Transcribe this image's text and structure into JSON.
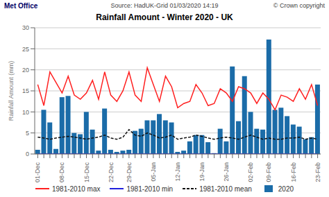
{
  "chart_data": {
    "type": "bar",
    "title": "Rainfall Amount - Winter 2020 - UK",
    "subtitle": "Source: HadUK-Grid 01/03/2020 14:19",
    "annotations": [
      "Met Office",
      "© Crown copyright"
    ],
    "ylabel": "Rainfall Amount (mm)",
    "categories": [
      "01-Dec",
      null,
      null,
      null,
      "08-Dec",
      null,
      null,
      null,
      "15-Dec",
      null,
      null,
      null,
      "22-Dec",
      null,
      null,
      "29-Dec",
      null,
      null,
      null,
      "05-Jan",
      null,
      null,
      null,
      "12-Jan",
      null,
      null,
      null,
      "19-Jan",
      null,
      null,
      null,
      "26-Jan",
      null,
      null,
      null,
      "02-Feb",
      null,
      null,
      "09-Feb",
      null,
      null,
      null,
      "16-Feb",
      null,
      null,
      null,
      "23-Feb"
    ],
    "series": [
      {
        "name": "1981-2010 max",
        "type": "line",
        "color": "#ff2020",
        "line_style": "solid",
        "values": [
          16.5,
          11.5,
          19.5,
          17.0,
          14.5,
          18.5,
          14.0,
          13.0,
          14.5,
          17.5,
          13.0,
          19.5,
          14.0,
          12.5,
          15.0,
          19.5,
          14.0,
          12.5,
          20.5,
          16.5,
          12.5,
          18.5,
          16.0,
          11.0,
          12.0,
          12.5,
          16.5,
          14.5,
          11.5,
          12.0,
          15.5,
          14.5,
          12.5,
          16.0,
          15.5,
          14.5,
          12.0,
          14.5,
          13.0,
          10.5,
          14.0,
          13.5,
          12.5,
          15.5,
          13.0,
          16.5,
          11.5
        ]
      },
      {
        "name": "1981-2010 min",
        "type": "line",
        "color": "#2020dd",
        "line_style": "solid",
        "values": [
          0.0,
          0.0,
          0.0,
          0.0,
          0.0,
          0.0,
          0.0,
          0.0,
          0.0,
          0.0,
          0.0,
          0.0,
          0.0,
          0.0,
          0.0,
          0.0,
          0.0,
          0.0,
          0.0,
          0.0,
          0.0,
          0.0,
          0.0,
          0.0,
          0.0,
          0.0,
          0.0,
          0.0,
          0.0,
          0.0,
          0.0,
          0.0,
          0.0,
          0.0,
          0.0,
          0.0,
          0.0,
          0.0,
          0.0,
          0.0,
          0.0,
          0.0,
          0.0,
          0.0,
          0.0,
          0.0,
          0.0
        ]
      },
      {
        "name": "1981-2010 mean",
        "type": "line",
        "color": "#111111",
        "line_style": "dashed",
        "values": [
          4.0,
          3.8,
          3.5,
          3.8,
          4.0,
          4.2,
          4.0,
          3.8,
          3.5,
          3.8,
          4.0,
          4.5,
          3.8,
          3.5,
          4.0,
          5.8,
          4.5,
          4.2,
          5.0,
          4.5,
          3.8,
          4.0,
          4.5,
          3.5,
          3.8,
          4.0,
          4.5,
          4.2,
          3.8,
          3.5,
          3.8,
          4.0,
          3.8,
          3.5,
          4.0,
          4.5,
          4.0,
          3.5,
          3.8,
          3.5,
          3.5,
          3.8,
          3.8,
          4.0,
          3.5,
          3.8,
          3.5
        ]
      },
      {
        "name": "2020",
        "type": "bar",
        "color": "#1b6ca8",
        "values": [
          1.0,
          10.5,
          7.5,
          1.2,
          13.5,
          13.8,
          5.0,
          4.7,
          10.0,
          5.8,
          0.8,
          10.8,
          1.0,
          0.5,
          0.8,
          1.0,
          5.5,
          6.0,
          8.0,
          8.0,
          9.5,
          8.0,
          7.5,
          0.5,
          0.8,
          3.0,
          4.5,
          4.5,
          2.8,
          0.2,
          6.0,
          3.0,
          20.8,
          7.8,
          18.5,
          10.0,
          6.0,
          5.8,
          27.2,
          10.5,
          11.0,
          9.0,
          7.0,
          6.5,
          3.5,
          4.0,
          16.5
        ]
      }
    ],
    "ylim": [
      0,
      30
    ],
    "yticks": [
      0,
      5,
      10,
      15,
      20,
      25,
      30
    ],
    "grid": true,
    "legend": "bottom"
  }
}
